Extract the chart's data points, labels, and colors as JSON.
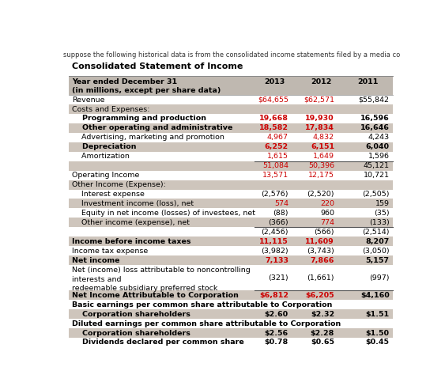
{
  "title": "Consolidated Statement of Income",
  "top_note": "suppose the following historical data is from the consolidated income statements filed by a media corporation",
  "header_label1": "Year ended December 31",
  "header_label2": "(in millions, except per share data)",
  "col_headers": [
    "2013",
    "2012",
    "2011"
  ],
  "rows": [
    {
      "label": "Revenue",
      "values": [
        "$64,655",
        "$62,571",
        "$55,842"
      ],
      "colors": [
        "#cc0000",
        "#cc0000",
        "#000000"
      ],
      "bold": false,
      "bg": "#ffffff",
      "border_bottom": false,
      "multiline": false
    },
    {
      "label": "Costs and Expenses:",
      "values": [
        "",
        "",
        ""
      ],
      "colors": [
        "#000000",
        "#000000",
        "#000000"
      ],
      "bold": false,
      "bg": "#cec5bc",
      "border_bottom": false,
      "multiline": false
    },
    {
      "label": "    Programming and production",
      "values": [
        "19,668",
        "19,930",
        "16,596"
      ],
      "colors": [
        "#cc0000",
        "#cc0000",
        "#000000"
      ],
      "bold": true,
      "bg": "#ffffff",
      "border_bottom": false,
      "multiline": false
    },
    {
      "label": "    Other operating and administrative",
      "values": [
        "18,582",
        "17,834",
        "16,646"
      ],
      "colors": [
        "#cc0000",
        "#cc0000",
        "#000000"
      ],
      "bold": true,
      "bg": "#cec5bc",
      "border_bottom": false,
      "multiline": false
    },
    {
      "label": "    Advertising, marketing and promotion",
      "values": [
        "4,967",
        "4,832",
        "4,243"
      ],
      "colors": [
        "#cc0000",
        "#cc0000",
        "#000000"
      ],
      "bold": false,
      "bg": "#ffffff",
      "border_bottom": false,
      "multiline": false
    },
    {
      "label": "    Depreciation",
      "values": [
        "6,252",
        "6,151",
        "6,040"
      ],
      "colors": [
        "#cc0000",
        "#cc0000",
        "#000000"
      ],
      "bold": true,
      "bg": "#cec5bc",
      "border_bottom": false,
      "multiline": false
    },
    {
      "label": "    Amortization",
      "values": [
        "1,615",
        "1,649",
        "1,596"
      ],
      "colors": [
        "#cc0000",
        "#cc0000",
        "#000000"
      ],
      "bold": false,
      "bg": "#ffffff",
      "border_bottom": true,
      "multiline": false
    },
    {
      "label": "",
      "values": [
        "51,084",
        "50,396",
        "45,121"
      ],
      "colors": [
        "#cc0000",
        "#cc0000",
        "#000000"
      ],
      "bold": false,
      "bg": "#cec5bc",
      "border_bottom": false,
      "multiline": false
    },
    {
      "label": "Operating Income",
      "values": [
        "13,571",
        "12,175",
        "10,721"
      ],
      "colors": [
        "#cc0000",
        "#cc0000",
        "#000000"
      ],
      "bold": false,
      "bg": "#ffffff",
      "border_bottom": false,
      "multiline": false
    },
    {
      "label": "Other Income (Expense):",
      "values": [
        "",
        "",
        ""
      ],
      "colors": [
        "#000000",
        "#000000",
        "#000000"
      ],
      "bold": false,
      "bg": "#cec5bc",
      "border_bottom": false,
      "multiline": false
    },
    {
      "label": "    Interest expense",
      "values": [
        "(2,576)",
        "(2,520)",
        "(2,505)"
      ],
      "colors": [
        "#000000",
        "#000000",
        "#000000"
      ],
      "bold": false,
      "bg": "#ffffff",
      "border_bottom": false,
      "multiline": false
    },
    {
      "label": "    Investment income (loss), net",
      "values": [
        "574",
        "220",
        "159"
      ],
      "colors": [
        "#cc0000",
        "#cc0000",
        "#000000"
      ],
      "bold": false,
      "bg": "#cec5bc",
      "border_bottom": false,
      "multiline": false
    },
    {
      "label": "    Equity in net income (losses) of investees, net",
      "values": [
        "(88)",
        "960",
        "(35)"
      ],
      "colors": [
        "#000000",
        "#000000",
        "#000000"
      ],
      "bold": false,
      "bg": "#ffffff",
      "border_bottom": false,
      "multiline": false
    },
    {
      "label": "    Other income (expense), net",
      "values": [
        "(366)",
        "774",
        "(133)"
      ],
      "colors": [
        "#000000",
        "#cc0000",
        "#000000"
      ],
      "bold": false,
      "bg": "#cec5bc",
      "border_bottom": true,
      "multiline": false
    },
    {
      "label": "",
      "values": [
        "(2,456)",
        "(566)",
        "(2,514)"
      ],
      "colors": [
        "#000000",
        "#000000",
        "#000000"
      ],
      "bold": false,
      "bg": "#ffffff",
      "border_bottom": false,
      "multiline": false
    },
    {
      "label": "Income before income taxes",
      "values": [
        "11,115",
        "11,609",
        "8,207"
      ],
      "colors": [
        "#cc0000",
        "#cc0000",
        "#000000"
      ],
      "bold": true,
      "bg": "#cec5bc",
      "border_bottom": false,
      "multiline": false
    },
    {
      "label": "Income tax expense",
      "values": [
        "(3,982)",
        "(3,743)",
        "(3,050)"
      ],
      "colors": [
        "#000000",
        "#000000",
        "#000000"
      ],
      "bold": false,
      "bg": "#ffffff",
      "border_bottom": false,
      "multiline": false
    },
    {
      "label": "Net income",
      "values": [
        "7,133",
        "7,866",
        "5,157"
      ],
      "colors": [
        "#cc0000",
        "#cc0000",
        "#000000"
      ],
      "bold": true,
      "bg": "#cec5bc",
      "border_bottom": false,
      "multiline": false
    },
    {
      "label": "Net (income) loss attributable to noncontrolling\ninterests and\nredeemable subsidiary preferred stock",
      "values": [
        "(321)",
        "(1,661)",
        "(997)"
      ],
      "colors": [
        "#000000",
        "#000000",
        "#000000"
      ],
      "bold": false,
      "bg": "#ffffff",
      "border_bottom": true,
      "multiline": true
    },
    {
      "label": "Net Income Attributable to Corporation",
      "values": [
        "$6,812",
        "$6,205",
        "$4,160"
      ],
      "colors": [
        "#cc0000",
        "#cc0000",
        "#000000"
      ],
      "bold": true,
      "bg": "#cec5bc",
      "border_bottom": false,
      "multiline": false
    },
    {
      "label": "Basic earnings per common share attributable to Corporation",
      "values": [
        "",
        "",
        ""
      ],
      "colors": [
        "#000000",
        "#000000",
        "#000000"
      ],
      "bold": true,
      "bg": "#ffffff",
      "border_bottom": false,
      "multiline": false
    },
    {
      "label": "    Corporation shareholders",
      "values": [
        "$2.60",
        "$2.32",
        "$1.51"
      ],
      "colors": [
        "#000000",
        "#000000",
        "#000000"
      ],
      "bold": true,
      "bg": "#cec5bc",
      "border_bottom": false,
      "multiline": false
    },
    {
      "label": "Diluted earnings per common share attributable to Corporation",
      "values": [
        "",
        "",
        ""
      ],
      "colors": [
        "#000000",
        "#000000",
        "#000000"
      ],
      "bold": true,
      "bg": "#ffffff",
      "border_bottom": false,
      "multiline": false
    },
    {
      "label": "    Corporation shareholders",
      "values": [
        "$2.56",
        "$2.28",
        "$1.50"
      ],
      "colors": [
        "#000000",
        "#000000",
        "#000000"
      ],
      "bold": true,
      "bg": "#cec5bc",
      "border_bottom": false,
      "multiline": false
    },
    {
      "label": "    Dividends declared per common share",
      "values": [
        "$0.78",
        "$0.65",
        "$0.45"
      ],
      "colors": [
        "#000000",
        "#000000",
        "#000000"
      ],
      "bold": true,
      "bg": "#ffffff",
      "border_bottom": false,
      "multiline": false
    }
  ],
  "bg_header": "#bfb8b0",
  "font_size": 6.8,
  "title_font_size": 8.0,
  "note_font_size": 6.0
}
